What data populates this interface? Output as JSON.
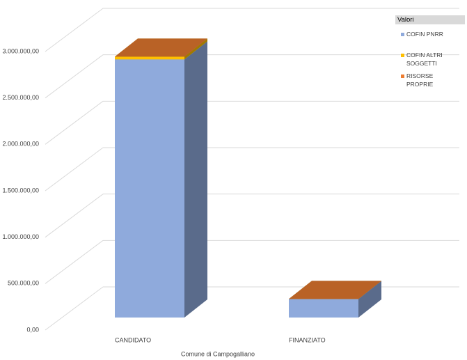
{
  "chart_data": {
    "type": "bar3d_stacked",
    "x_label": "Comune di Campogalliano",
    "legend_title": "Valori",
    "categories": [
      "CANDIDATO",
      "FINANZIATO"
    ],
    "series": [
      {
        "name": "COFIN PNRR",
        "color": "#8faadc",
        "values": [
          2780000,
          200000
        ]
      },
      {
        "name": "COFIN ALTRI SOGGETTI",
        "color": "#ffc000",
        "values": [
          30000,
          0
        ]
      },
      {
        "name": "RISORSE PROPRIE",
        "color": "#ed7d31",
        "values": [
          0,
          0
        ]
      }
    ],
    "ylim": [
      0,
      3000000
    ],
    "yticks": [
      {
        "value": 0,
        "label": "0,00"
      },
      {
        "value": 500000,
        "label": "500.000,00"
      },
      {
        "value": 1000000,
        "label": "1.000.000,00"
      },
      {
        "value": 1500000,
        "label": "1.500.000,00"
      },
      {
        "value": 2000000,
        "label": "2.000.000,00"
      },
      {
        "value": 2500000,
        "label": "2.500.000,00"
      },
      {
        "value": 3000000,
        "label": "3.000.000,00"
      }
    ],
    "grid": true
  }
}
